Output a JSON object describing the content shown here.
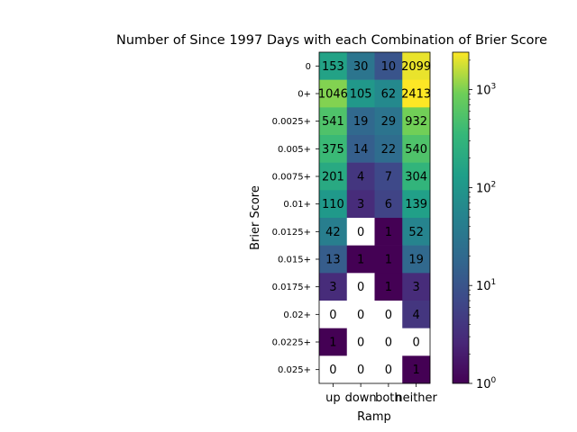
{
  "chart_data": {
    "type": "heatmap",
    "title": "Number of Since 1997 Days with each Combination of Brier Score",
    "xlabel": "Ramp",
    "ylabel": "Brier Score",
    "x_categories": [
      "up",
      "down",
      "both",
      "neither"
    ],
    "y_categories": [
      "0",
      "0+",
      "0.0025+",
      "0.005+",
      "0.0075+",
      "0.01+",
      "0.0125+",
      "0.015+",
      "0.0175+",
      "0.02+",
      "0.0225+",
      "0.025+"
    ],
    "values": [
      [
        153,
        30,
        10,
        2099
      ],
      [
        1046,
        105,
        62,
        2413
      ],
      [
        541,
        19,
        29,
        932
      ],
      [
        375,
        14,
        22,
        540
      ],
      [
        201,
        4,
        7,
        304
      ],
      [
        110,
        3,
        6,
        139
      ],
      [
        42,
        0,
        1,
        52
      ],
      [
        13,
        1,
        1,
        19
      ],
      [
        3,
        0,
        1,
        3
      ],
      [
        0,
        0,
        0,
        4
      ],
      [
        1,
        0,
        0,
        0
      ],
      [
        0,
        0,
        0,
        1
      ]
    ],
    "colorscale": "viridis",
    "color_scale_type": "log",
    "color_range": [
      1,
      2413
    ],
    "colorbar_ticks": [
      "10^0",
      "10^1",
      "10^2",
      "10^3"
    ],
    "zero_color": "#ffffff",
    "grid": false
  }
}
